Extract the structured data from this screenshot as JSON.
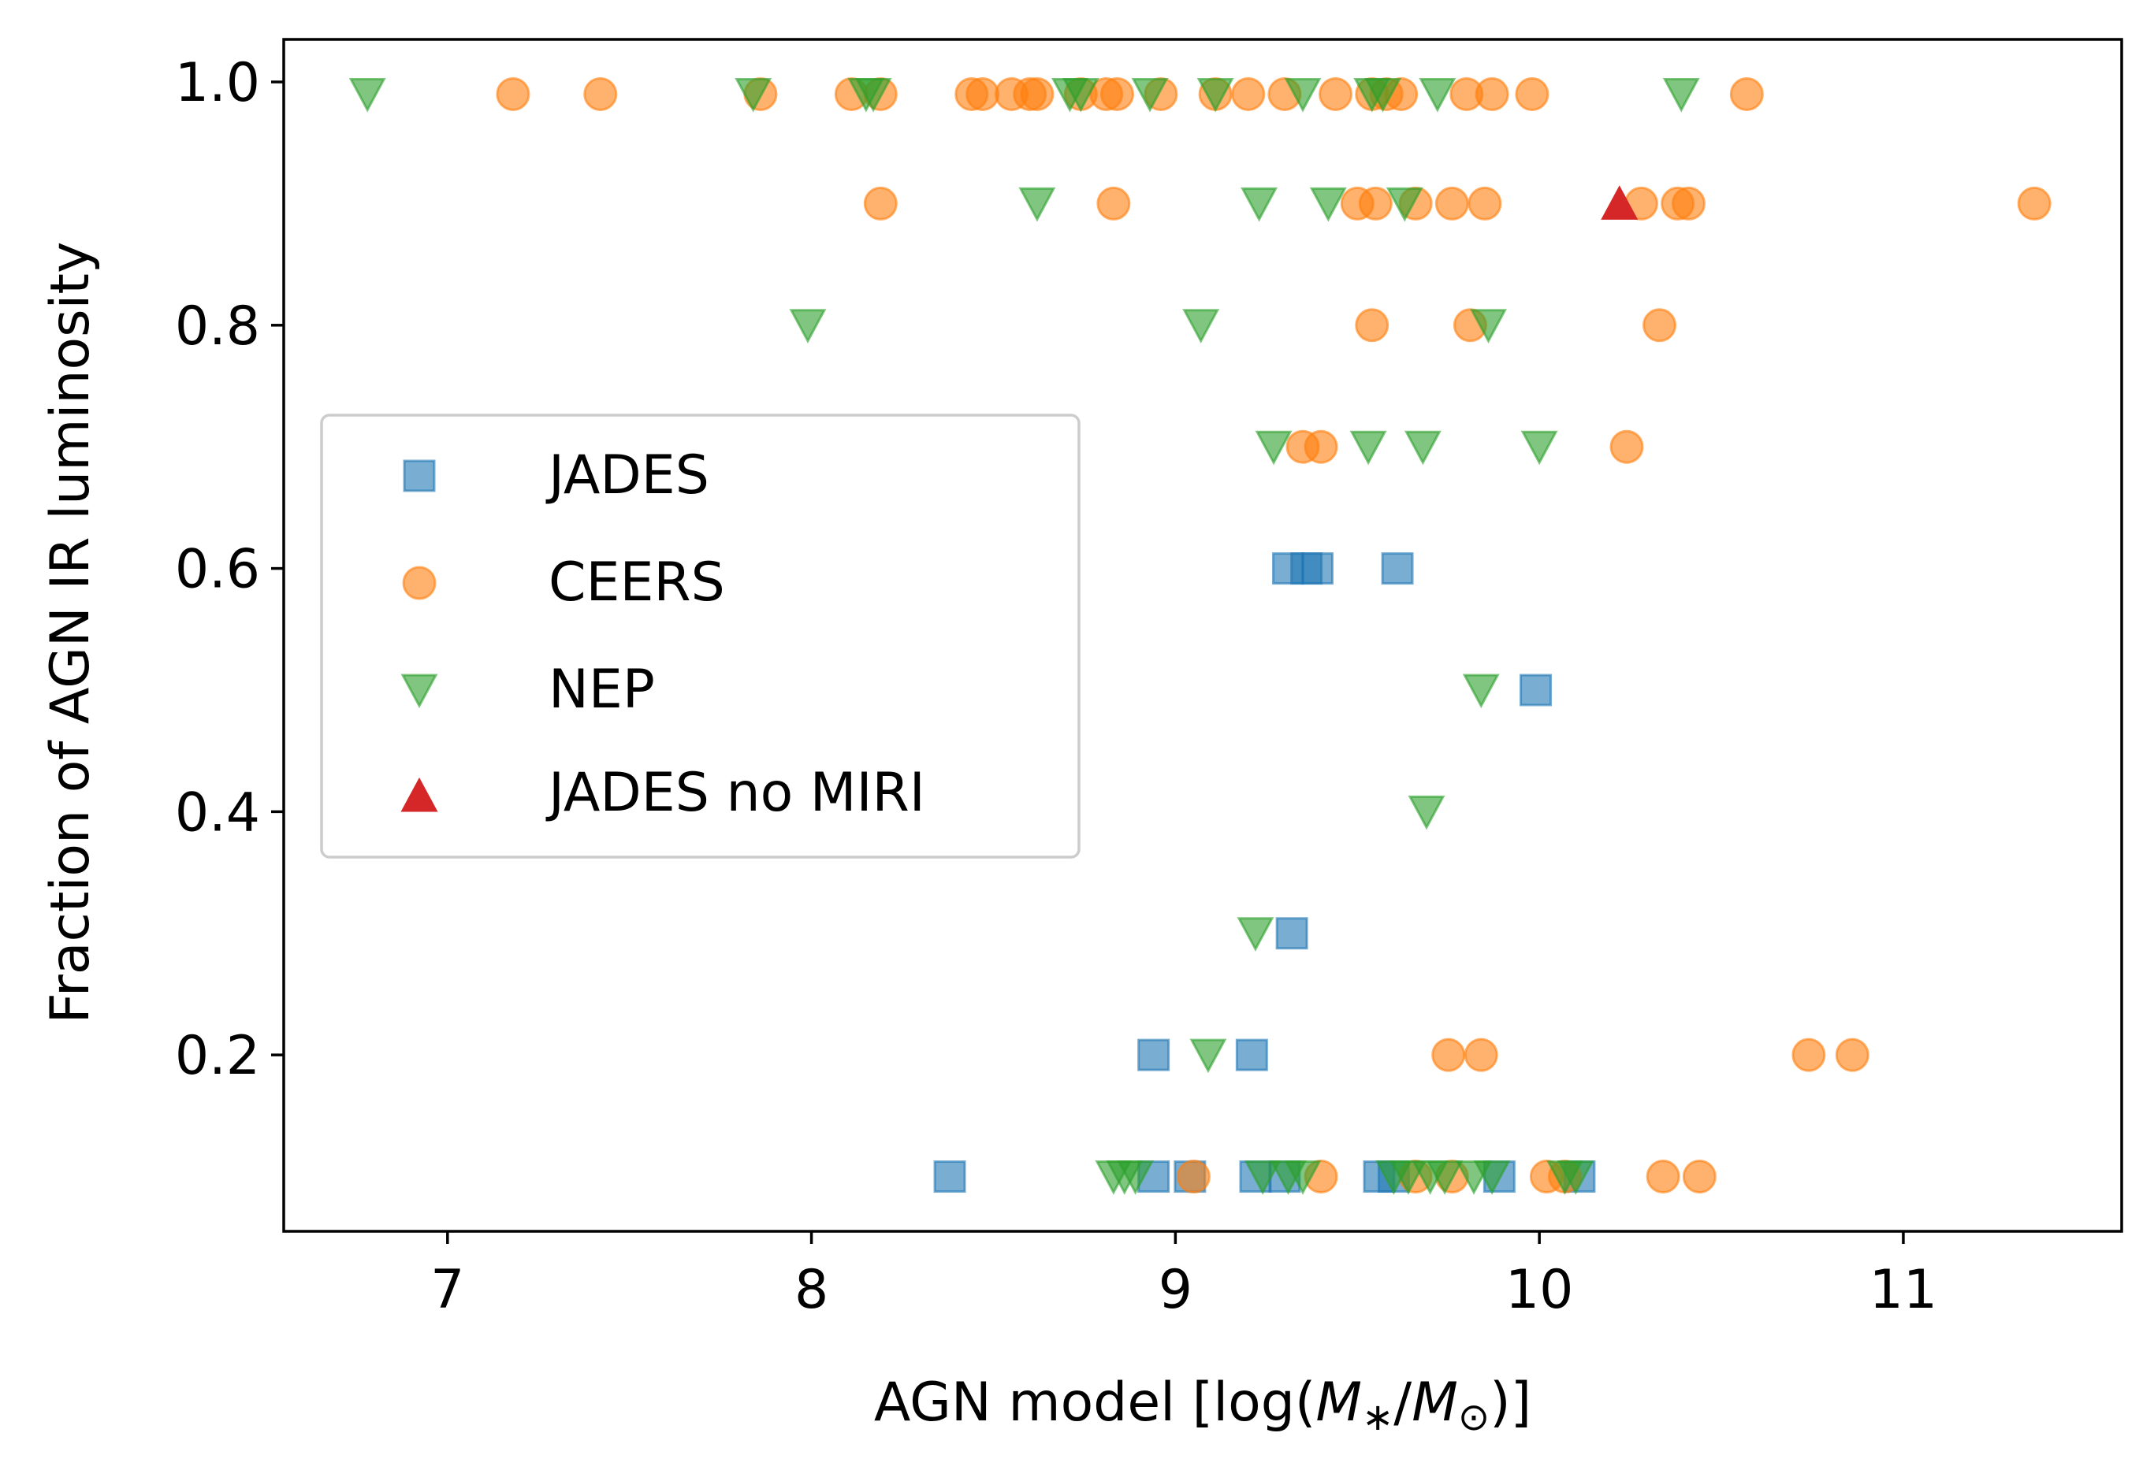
{
  "chart_data": {
    "type": "scatter",
    "title": "",
    "xlabel": "AGN model [log(M∗/M⊙)]",
    "xlabel_parts": {
      "prefix": "AGN model [log(",
      "m1": "M",
      "sub1": "∗",
      "slash": "/",
      "m2": "M",
      "sub2": "⊙",
      "suffix": ")]"
    },
    "ylabel": "Fraction of AGN IR luminosity",
    "xlim": [
      6.55,
      11.6
    ],
    "ylim": [
      0.055,
      1.035
    ],
    "xticks": [
      7,
      8,
      9,
      10,
      11
    ],
    "xtick_labels": [
      "7",
      "8",
      "9",
      "10",
      "11"
    ],
    "yticks": [
      0.2,
      0.4,
      0.6,
      0.8,
      1.0
    ],
    "ytick_labels": [
      "0.2",
      "0.4",
      "0.6",
      "0.8",
      "1.0"
    ],
    "grid": false,
    "legend": {
      "placement": "center-left",
      "entries": [
        "JADES",
        "CEERS",
        "NEP",
        "JADES no MIRI"
      ]
    },
    "series": [
      {
        "name": "JADES",
        "marker": "square",
        "color": "#1f77b4",
        "points": [
          [
            9.31,
            0.6
          ],
          [
            9.36,
            0.6
          ],
          [
            9.39,
            0.6
          ],
          [
            9.61,
            0.6
          ],
          [
            9.99,
            0.5
          ],
          [
            9.32,
            0.3
          ],
          [
            8.94,
            0.2
          ],
          [
            9.21,
            0.2
          ],
          [
            8.38,
            0.1
          ],
          [
            8.94,
            0.1
          ],
          [
            9.04,
            0.1
          ],
          [
            9.22,
            0.1
          ],
          [
            9.3,
            0.1
          ],
          [
            9.56,
            0.1
          ],
          [
            9.6,
            0.1
          ],
          [
            9.89,
            0.1
          ],
          [
            10.11,
            0.1
          ]
        ]
      },
      {
        "name": "CEERS",
        "marker": "circle",
        "color": "#ff7f0e",
        "points": [
          [
            7.18,
            0.99
          ],
          [
            7.42,
            0.99
          ],
          [
            7.86,
            0.99
          ],
          [
            8.11,
            0.99
          ],
          [
            8.19,
            0.99
          ],
          [
            8.44,
            0.99
          ],
          [
            8.47,
            0.99
          ],
          [
            8.55,
            0.99
          ],
          [
            8.6,
            0.99
          ],
          [
            8.62,
            0.99
          ],
          [
            8.74,
            0.99
          ],
          [
            8.81,
            0.99
          ],
          [
            8.84,
            0.99
          ],
          [
            8.96,
            0.99
          ],
          [
            9.11,
            0.99
          ],
          [
            9.2,
            0.99
          ],
          [
            9.3,
            0.99
          ],
          [
            9.44,
            0.99
          ],
          [
            9.54,
            0.99
          ],
          [
            9.58,
            0.99
          ],
          [
            9.62,
            0.99
          ],
          [
            9.8,
            0.99
          ],
          [
            9.87,
            0.99
          ],
          [
            9.98,
            0.99
          ],
          [
            10.57,
            0.99
          ],
          [
            8.19,
            0.9
          ],
          [
            8.83,
            0.9
          ],
          [
            9.5,
            0.9
          ],
          [
            9.55,
            0.9
          ],
          [
            9.66,
            0.9
          ],
          [
            9.76,
            0.9
          ],
          [
            9.85,
            0.9
          ],
          [
            10.28,
            0.9
          ],
          [
            10.38,
            0.9
          ],
          [
            10.41,
            0.9
          ],
          [
            11.36,
            0.9
          ],
          [
            9.54,
            0.8
          ],
          [
            9.81,
            0.8
          ],
          [
            10.33,
            0.8
          ],
          [
            9.35,
            0.7
          ],
          [
            9.4,
            0.7
          ],
          [
            10.24,
            0.7
          ],
          [
            9.75,
            0.2
          ],
          [
            9.84,
            0.2
          ],
          [
            10.74,
            0.2
          ],
          [
            10.86,
            0.2
          ],
          [
            9.05,
            0.1
          ],
          [
            9.4,
            0.1
          ],
          [
            9.66,
            0.1
          ],
          [
            9.76,
            0.1
          ],
          [
            10.02,
            0.1
          ],
          [
            10.07,
            0.1
          ],
          [
            10.34,
            0.1
          ],
          [
            10.44,
            0.1
          ]
        ]
      },
      {
        "name": "NEP",
        "marker": "triangle-down",
        "color": "#2ca02c",
        "points": [
          [
            6.78,
            0.99
          ],
          [
            7.84,
            0.99
          ],
          [
            8.15,
            0.99
          ],
          [
            8.17,
            0.99
          ],
          [
            8.71,
            0.99
          ],
          [
            8.74,
            0.99
          ],
          [
            8.93,
            0.99
          ],
          [
            9.11,
            0.99
          ],
          [
            9.35,
            0.99
          ],
          [
            9.54,
            0.99
          ],
          [
            9.57,
            0.99
          ],
          [
            9.72,
            0.99
          ],
          [
            10.39,
            0.99
          ],
          [
            8.62,
            0.9
          ],
          [
            9.23,
            0.9
          ],
          [
            9.42,
            0.9
          ],
          [
            9.63,
            0.9
          ],
          [
            7.99,
            0.8
          ],
          [
            9.07,
            0.8
          ],
          [
            9.86,
            0.8
          ],
          [
            9.27,
            0.7
          ],
          [
            9.53,
            0.7
          ],
          [
            9.68,
            0.7
          ],
          [
            10.0,
            0.7
          ],
          [
            9.84,
            0.5
          ],
          [
            9.69,
            0.4
          ],
          [
            9.22,
            0.3
          ],
          [
            9.09,
            0.2
          ],
          [
            8.83,
            0.1
          ],
          [
            8.86,
            0.1
          ],
          [
            8.89,
            0.1
          ],
          [
            9.24,
            0.1
          ],
          [
            9.31,
            0.1
          ],
          [
            9.35,
            0.1
          ],
          [
            9.6,
            0.1
          ],
          [
            9.64,
            0.1
          ],
          [
            9.7,
            0.1
          ],
          [
            9.74,
            0.1
          ],
          [
            9.82,
            0.1
          ],
          [
            9.87,
            0.1
          ],
          [
            10.07,
            0.1
          ],
          [
            10.1,
            0.1
          ]
        ]
      },
      {
        "name": "JADES no MIRI",
        "marker": "triangle-up",
        "color": "#d62728",
        "points": [
          [
            10.22,
            0.9
          ]
        ]
      }
    ]
  }
}
